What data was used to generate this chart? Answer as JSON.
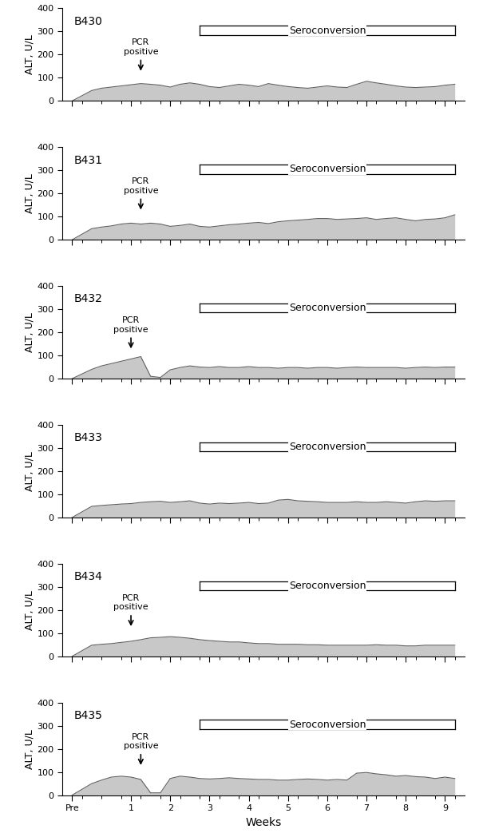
{
  "rats": [
    "B430",
    "B431",
    "B432",
    "B433",
    "B434",
    "B435"
  ],
  "pcr_annotations": [
    {
      "x": 1.25,
      "show": true
    },
    {
      "x": 1.25,
      "show": true
    },
    {
      "x": 1.0,
      "show": true
    },
    {
      "x": null,
      "show": false
    },
    {
      "x": 1.0,
      "show": true
    },
    {
      "x": 1.25,
      "show": true
    }
  ],
  "seroconversion_x_start": [
    2.75,
    2.75,
    2.75,
    2.75,
    2.75,
    2.75
  ],
  "seroconversion_x_end": [
    9.25,
    9.25,
    9.25,
    9.25,
    9.25,
    9.25
  ],
  "seroconversion_y_bottom": [
    285,
    285,
    285,
    285,
    285,
    285
  ],
  "seroconversion_y_top": [
    325,
    325,
    325,
    325,
    325,
    325
  ],
  "alt_data": {
    "B430": {
      "x": [
        -0.5,
        0.0,
        0.25,
        0.5,
        0.75,
        1.0,
        1.25,
        1.5,
        1.75,
        2.0,
        2.25,
        2.5,
        2.75,
        3.0,
        3.25,
        3.5,
        3.75,
        4.0,
        4.25,
        4.5,
        4.75,
        5.0,
        5.25,
        5.5,
        5.75,
        6.0,
        6.25,
        6.5,
        6.75,
        7.0,
        7.25,
        7.5,
        7.75,
        8.0,
        8.25,
        8.5,
        8.75,
        9.0,
        9.25
      ],
      "y": [
        0,
        45,
        55,
        60,
        65,
        70,
        75,
        72,
        68,
        60,
        72,
        78,
        72,
        62,
        58,
        65,
        72,
        68,
        62,
        75,
        68,
        62,
        58,
        55,
        60,
        65,
        60,
        58,
        72,
        85,
        78,
        72,
        65,
        60,
        58,
        60,
        62,
        68,
        72
      ]
    },
    "B431": {
      "x": [
        -0.5,
        0.0,
        0.25,
        0.5,
        0.75,
        1.0,
        1.25,
        1.5,
        1.75,
        2.0,
        2.25,
        2.5,
        2.75,
        3.0,
        3.25,
        3.5,
        3.75,
        4.0,
        4.25,
        4.5,
        4.75,
        5.0,
        5.25,
        5.5,
        5.75,
        6.0,
        6.25,
        6.5,
        6.75,
        7.0,
        7.25,
        7.5,
        7.75,
        8.0,
        8.25,
        8.5,
        8.75,
        9.0,
        9.25
      ],
      "y": [
        0,
        48,
        55,
        60,
        68,
        72,
        68,
        72,
        68,
        58,
        62,
        68,
        58,
        55,
        60,
        65,
        68,
        72,
        75,
        70,
        78,
        82,
        85,
        88,
        92,
        92,
        88,
        90,
        92,
        95,
        88,
        92,
        95,
        88,
        82,
        88,
        90,
        95,
        108
      ]
    },
    "B432": {
      "x": [
        -0.5,
        0.0,
        0.25,
        0.5,
        0.75,
        1.0,
        1.25,
        1.5,
        1.75,
        2.0,
        2.25,
        2.5,
        2.75,
        3.0,
        3.25,
        3.5,
        3.75,
        4.0,
        4.25,
        4.5,
        4.75,
        5.0,
        5.25,
        5.5,
        5.75,
        6.0,
        6.25,
        6.5,
        6.75,
        7.0,
        7.25,
        7.5,
        7.75,
        8.0,
        8.25,
        8.5,
        8.75,
        9.0,
        9.25
      ],
      "y": [
        0,
        40,
        55,
        65,
        75,
        85,
        95,
        10,
        5,
        38,
        48,
        55,
        50,
        48,
        52,
        48,
        48,
        52,
        48,
        48,
        45,
        48,
        48,
        45,
        48,
        48,
        45,
        48,
        50,
        48,
        48,
        48,
        48,
        45,
        48,
        50,
        48,
        50,
        50
      ]
    },
    "B433": {
      "x": [
        -0.5,
        0.0,
        0.25,
        0.5,
        0.75,
        1.0,
        1.25,
        1.5,
        1.75,
        2.0,
        2.25,
        2.5,
        2.75,
        3.0,
        3.25,
        3.5,
        3.75,
        4.0,
        4.25,
        4.5,
        4.75,
        5.0,
        5.25,
        5.5,
        5.75,
        6.0,
        6.25,
        6.5,
        6.75,
        7.0,
        7.25,
        7.5,
        7.75,
        8.0,
        8.25,
        8.5,
        8.75,
        9.0,
        9.25
      ],
      "y": [
        0,
        48,
        52,
        55,
        58,
        60,
        65,
        68,
        70,
        65,
        68,
        72,
        62,
        58,
        62,
        60,
        62,
        65,
        60,
        62,
        75,
        78,
        72,
        70,
        68,
        65,
        65,
        65,
        68,
        65,
        65,
        68,
        65,
        62,
        68,
        72,
        70,
        72,
        72
      ]
    },
    "B434": {
      "x": [
        -0.5,
        0.0,
        0.25,
        0.5,
        0.75,
        1.0,
        1.25,
        1.5,
        1.75,
        2.0,
        2.25,
        2.5,
        2.75,
        3.0,
        3.25,
        3.5,
        3.75,
        4.0,
        4.25,
        4.5,
        4.75,
        5.0,
        5.25,
        5.5,
        5.75,
        6.0,
        6.25,
        6.5,
        6.75,
        7.0,
        7.25,
        7.5,
        7.75,
        8.0,
        8.25,
        8.5,
        8.75,
        9.0,
        9.25
      ],
      "y": [
        0,
        48,
        52,
        55,
        60,
        65,
        72,
        80,
        82,
        85,
        82,
        78,
        72,
        68,
        65,
        62,
        62,
        58,
        55,
        55,
        52,
        52,
        52,
        50,
        50,
        48,
        48,
        48,
        48,
        48,
        50,
        48,
        48,
        45,
        45,
        48,
        48,
        48,
        48
      ]
    },
    "B435": {
      "x": [
        -0.5,
        0.0,
        0.25,
        0.5,
        0.75,
        1.0,
        1.25,
        1.5,
        1.75,
        2.0,
        2.25,
        2.5,
        2.75,
        3.0,
        3.25,
        3.5,
        3.75,
        4.0,
        4.25,
        4.5,
        4.75,
        5.0,
        5.25,
        5.5,
        5.75,
        6.0,
        6.25,
        6.5,
        6.75,
        7.0,
        7.25,
        7.5,
        7.75,
        8.0,
        8.25,
        8.5,
        8.75,
        9.0,
        9.25
      ],
      "y": [
        0,
        50,
        65,
        78,
        82,
        78,
        68,
        10,
        10,
        72,
        82,
        78,
        72,
        70,
        72,
        75,
        72,
        70,
        68,
        68,
        65,
        65,
        68,
        70,
        68,
        65,
        68,
        65,
        95,
        98,
        92,
        88,
        82,
        85,
        80,
        78,
        72,
        78,
        72
      ]
    }
  },
  "fill_color": "#c8c8c8",
  "fill_edge_color": "#606060",
  "ylim": [
    0,
    400
  ],
  "yticks": [
    0,
    100,
    200,
    300,
    400
  ],
  "xlim": [
    -0.75,
    9.5
  ],
  "ylabel": "ALT, U/L",
  "xlabel": "Weeks",
  "background_color": "#ffffff",
  "rat_label_fontsize": 10,
  "label_fontsize": 9,
  "pcr_fontsize": 8,
  "tick_fontsize": 8,
  "xlabel_fontsize": 10
}
